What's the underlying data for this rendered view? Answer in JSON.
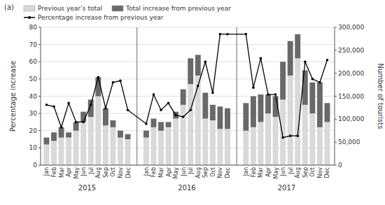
{
  "chart_data": {
    "type": "bar",
    "stacked": true,
    "categories": [
      "Jan",
      "Feb",
      "Mar",
      "Apr",
      "May",
      "Jun",
      "Jul",
      "Aug",
      "Sep",
      "Oct",
      "Nov",
      "Dec",
      "Jan",
      "Feb",
      "Mar",
      "Apr",
      "May",
      "Jun",
      "Jul",
      "Aug",
      "Sep",
      "Oct",
      "Nov",
      "Dec",
      "Jan",
      "Feb",
      "Mar",
      "Apr",
      "May",
      "Jun",
      "Jul",
      "Aug",
      "Sep",
      "Oct",
      "Nov",
      "Dec"
    ],
    "groups": [
      "2015",
      "2016",
      "2017"
    ],
    "annotations": [
      "(a)"
    ],
    "series": [
      {
        "name": "Previous year’s total",
        "type": "bar",
        "color": "#d9d9d9",
        "values": [
          12,
          14,
          16,
          16,
          20,
          25,
          28,
          40,
          23,
          22,
          16,
          15,
          16,
          22,
          20,
          22,
          27,
          35,
          47,
          52,
          27,
          26,
          21,
          21,
          20,
          22,
          25,
          30,
          28,
          38,
          52,
          62,
          35,
          30,
          22,
          25
        ]
      },
      {
        "name": "Total increase from previous year",
        "type": "bar",
        "color": "#696969",
        "values": [
          4,
          5,
          6,
          3,
          5,
          6,
          10,
          11,
          10,
          4,
          4,
          3,
          4,
          5,
          5,
          3,
          4,
          9,
          15,
          12,
          15,
          9,
          13,
          12,
          16,
          18,
          16,
          11,
          12,
          22,
          20,
          14,
          20,
          18,
          26,
          11
        ]
      },
      {
        "name": "Percentage increase from previous year",
        "type": "line",
        "color": "#000000",
        "marker": "circle",
        "values": [
          35,
          34,
          22,
          36,
          25,
          25,
          35,
          51,
          33,
          48,
          49,
          32,
          24,
          41,
          32,
          36,
          29,
          28,
          32,
          46,
          60,
          42,
          76,
          76,
          76,
          45,
          62,
          41,
          41,
          16,
          17,
          17,
          60,
          50,
          48,
          61
        ]
      }
    ],
    "ylabel": "Percentage increase",
    "y2label": "Number of tourists",
    "ylim": [
      0,
      80
    ],
    "yticks": [
      0,
      10,
      20,
      30,
      40,
      50,
      60,
      70,
      80
    ],
    "y2lim": [
      0,
      300000
    ],
    "y2ticks": [
      0,
      {
        "value": 50000,
        "label": "50,000"
      },
      {
        "value": 100000,
        "label": "100,000"
      },
      {
        "value": 150000,
        "label": "150,000"
      },
      {
        "value": 200000,
        "label": "200,000"
      },
      {
        "value": 250000,
        "label": "250,000"
      },
      {
        "value": 300000,
        "label": "300,000"
      }
    ],
    "grid": true,
    "legend": "top"
  }
}
